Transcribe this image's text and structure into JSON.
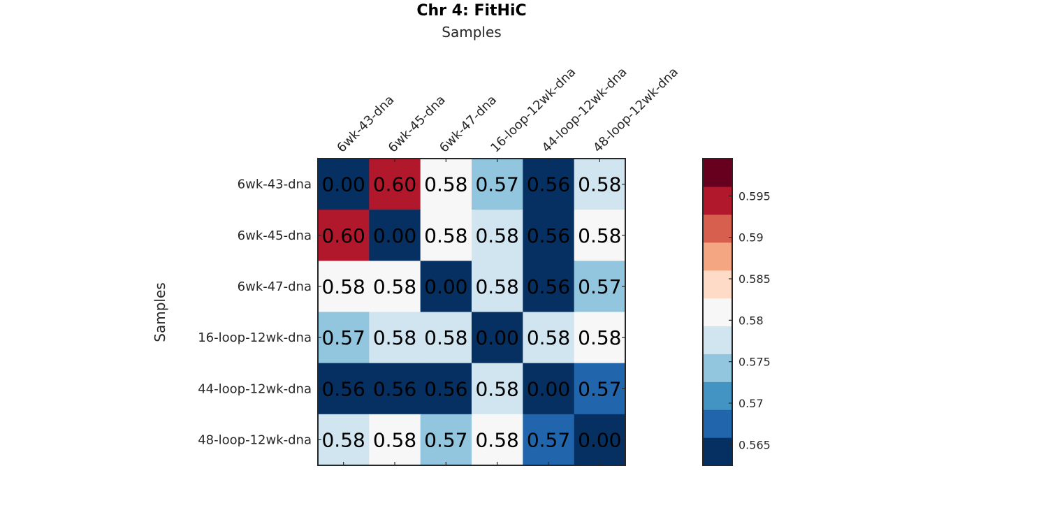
{
  "chart_data": {
    "type": "heatmap",
    "title": "Chr 4: FitHiC",
    "xlabel": "Samples",
    "ylabel": "Samples",
    "x_categories": [
      "6wk-43-dna",
      "6wk-45-dna",
      "6wk-47-dna",
      "16-loop-12wk-dna",
      "44-loop-12wk-dna",
      "48-loop-12wk-dna"
    ],
    "y_categories": [
      "6wk-43-dna",
      "6wk-45-dna",
      "6wk-47-dna",
      "16-loop-12wk-dna",
      "44-loop-12wk-dna",
      "48-loop-12wk-dna"
    ],
    "values": [
      [
        0.0,
        0.6,
        0.58,
        0.57,
        0.56,
        0.58
      ],
      [
        0.6,
        0.0,
        0.58,
        0.58,
        0.56,
        0.58
      ],
      [
        0.58,
        0.58,
        0.0,
        0.58,
        0.56,
        0.57
      ],
      [
        0.57,
        0.58,
        0.58,
        0.0,
        0.58,
        0.58
      ],
      [
        0.56,
        0.56,
        0.56,
        0.58,
        0.0,
        0.57
      ],
      [
        0.58,
        0.58,
        0.57,
        0.58,
        0.57,
        0.0
      ]
    ],
    "cell_labels": [
      [
        "0.00",
        "0.60",
        "0.58",
        "0.57",
        "0.56",
        "0.58"
      ],
      [
        "0.60",
        "0.00",
        "0.58",
        "0.58",
        "0.56",
        "0.58"
      ],
      [
        "0.58",
        "0.58",
        "0.00",
        "0.58",
        "0.56",
        "0.57"
      ],
      [
        "0.57",
        "0.58",
        "0.58",
        "0.00",
        "0.58",
        "0.58"
      ],
      [
        "0.56",
        "0.56",
        "0.56",
        "0.58",
        "0.00",
        "0.57"
      ],
      [
        "0.58",
        "0.58",
        "0.57",
        "0.58",
        "0.57",
        "0.00"
      ]
    ],
    "cell_color_index": [
      [
        0,
        9,
        5,
        3,
        0,
        4
      ],
      [
        9,
        0,
        5,
        4,
        0,
        5
      ],
      [
        5,
        5,
        0,
        4,
        0,
        3
      ],
      [
        3,
        4,
        4,
        0,
        4,
        5
      ],
      [
        0,
        0,
        0,
        4,
        0,
        1
      ],
      [
        4,
        5,
        3,
        5,
        1,
        0
      ]
    ],
    "colorbar": {
      "range": [
        0.5625,
        0.5995
      ],
      "colors": [
        "#053061",
        "#2166ac",
        "#4393c3",
        "#92c5de",
        "#d1e5f0",
        "#f7f7f7",
        "#fddbc7",
        "#f4a582",
        "#d6604d",
        "#b2182b",
        "#67001f"
      ],
      "ticks": [
        0.565,
        0.57,
        0.575,
        0.58,
        0.585,
        0.59,
        0.595
      ],
      "tick_labels": [
        "0.565",
        "0.57",
        "0.575",
        "0.58",
        "0.585",
        "0.59",
        "0.595"
      ]
    }
  }
}
